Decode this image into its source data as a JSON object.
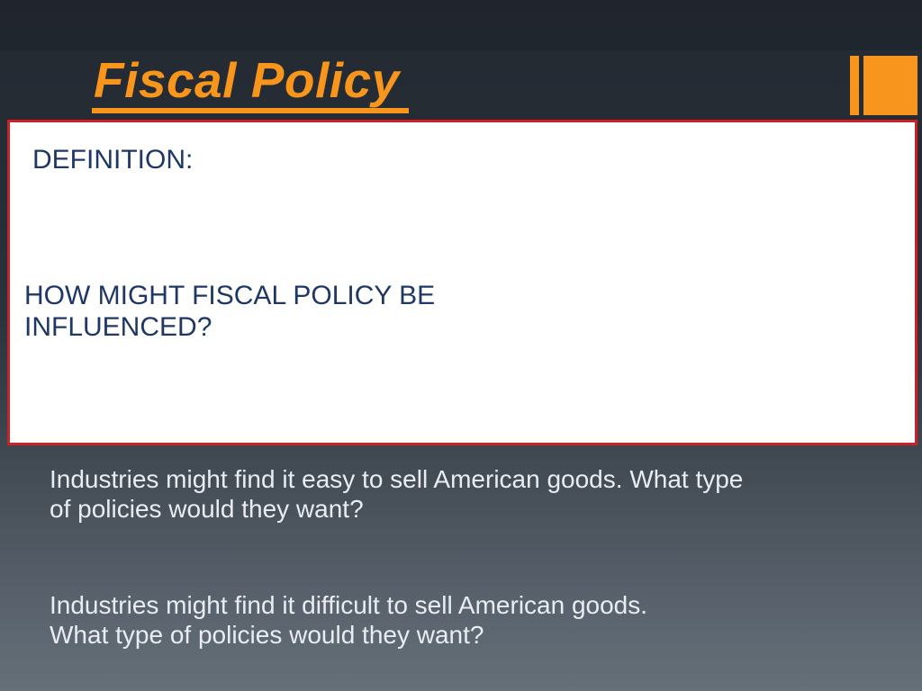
{
  "slide": {
    "title": "Fiscal Policy",
    "whitebox": {
      "definition_label": "DEFINITION:",
      "question": {
        "line1": "HOW MIGHT FISCAL POLICY BE",
        "line2": "INFLUENCED?"
      }
    },
    "prompts": {
      "easy": {
        "line1": "Industries might find it easy to sell American goods. What type",
        "line2": "of policies would they want?"
      },
      "difficult": {
        "line1": "Industries might find it difficult to sell American goods.",
        "line2": "What type of policies would they want?"
      }
    },
    "colors": {
      "accent_orange": "#f8951d",
      "box_border_red": "#cc2027",
      "heading_navy": "#1e3765",
      "body_text": "#e9edf2",
      "background_top": "#242a32",
      "background_bottom": "#657079"
    }
  }
}
